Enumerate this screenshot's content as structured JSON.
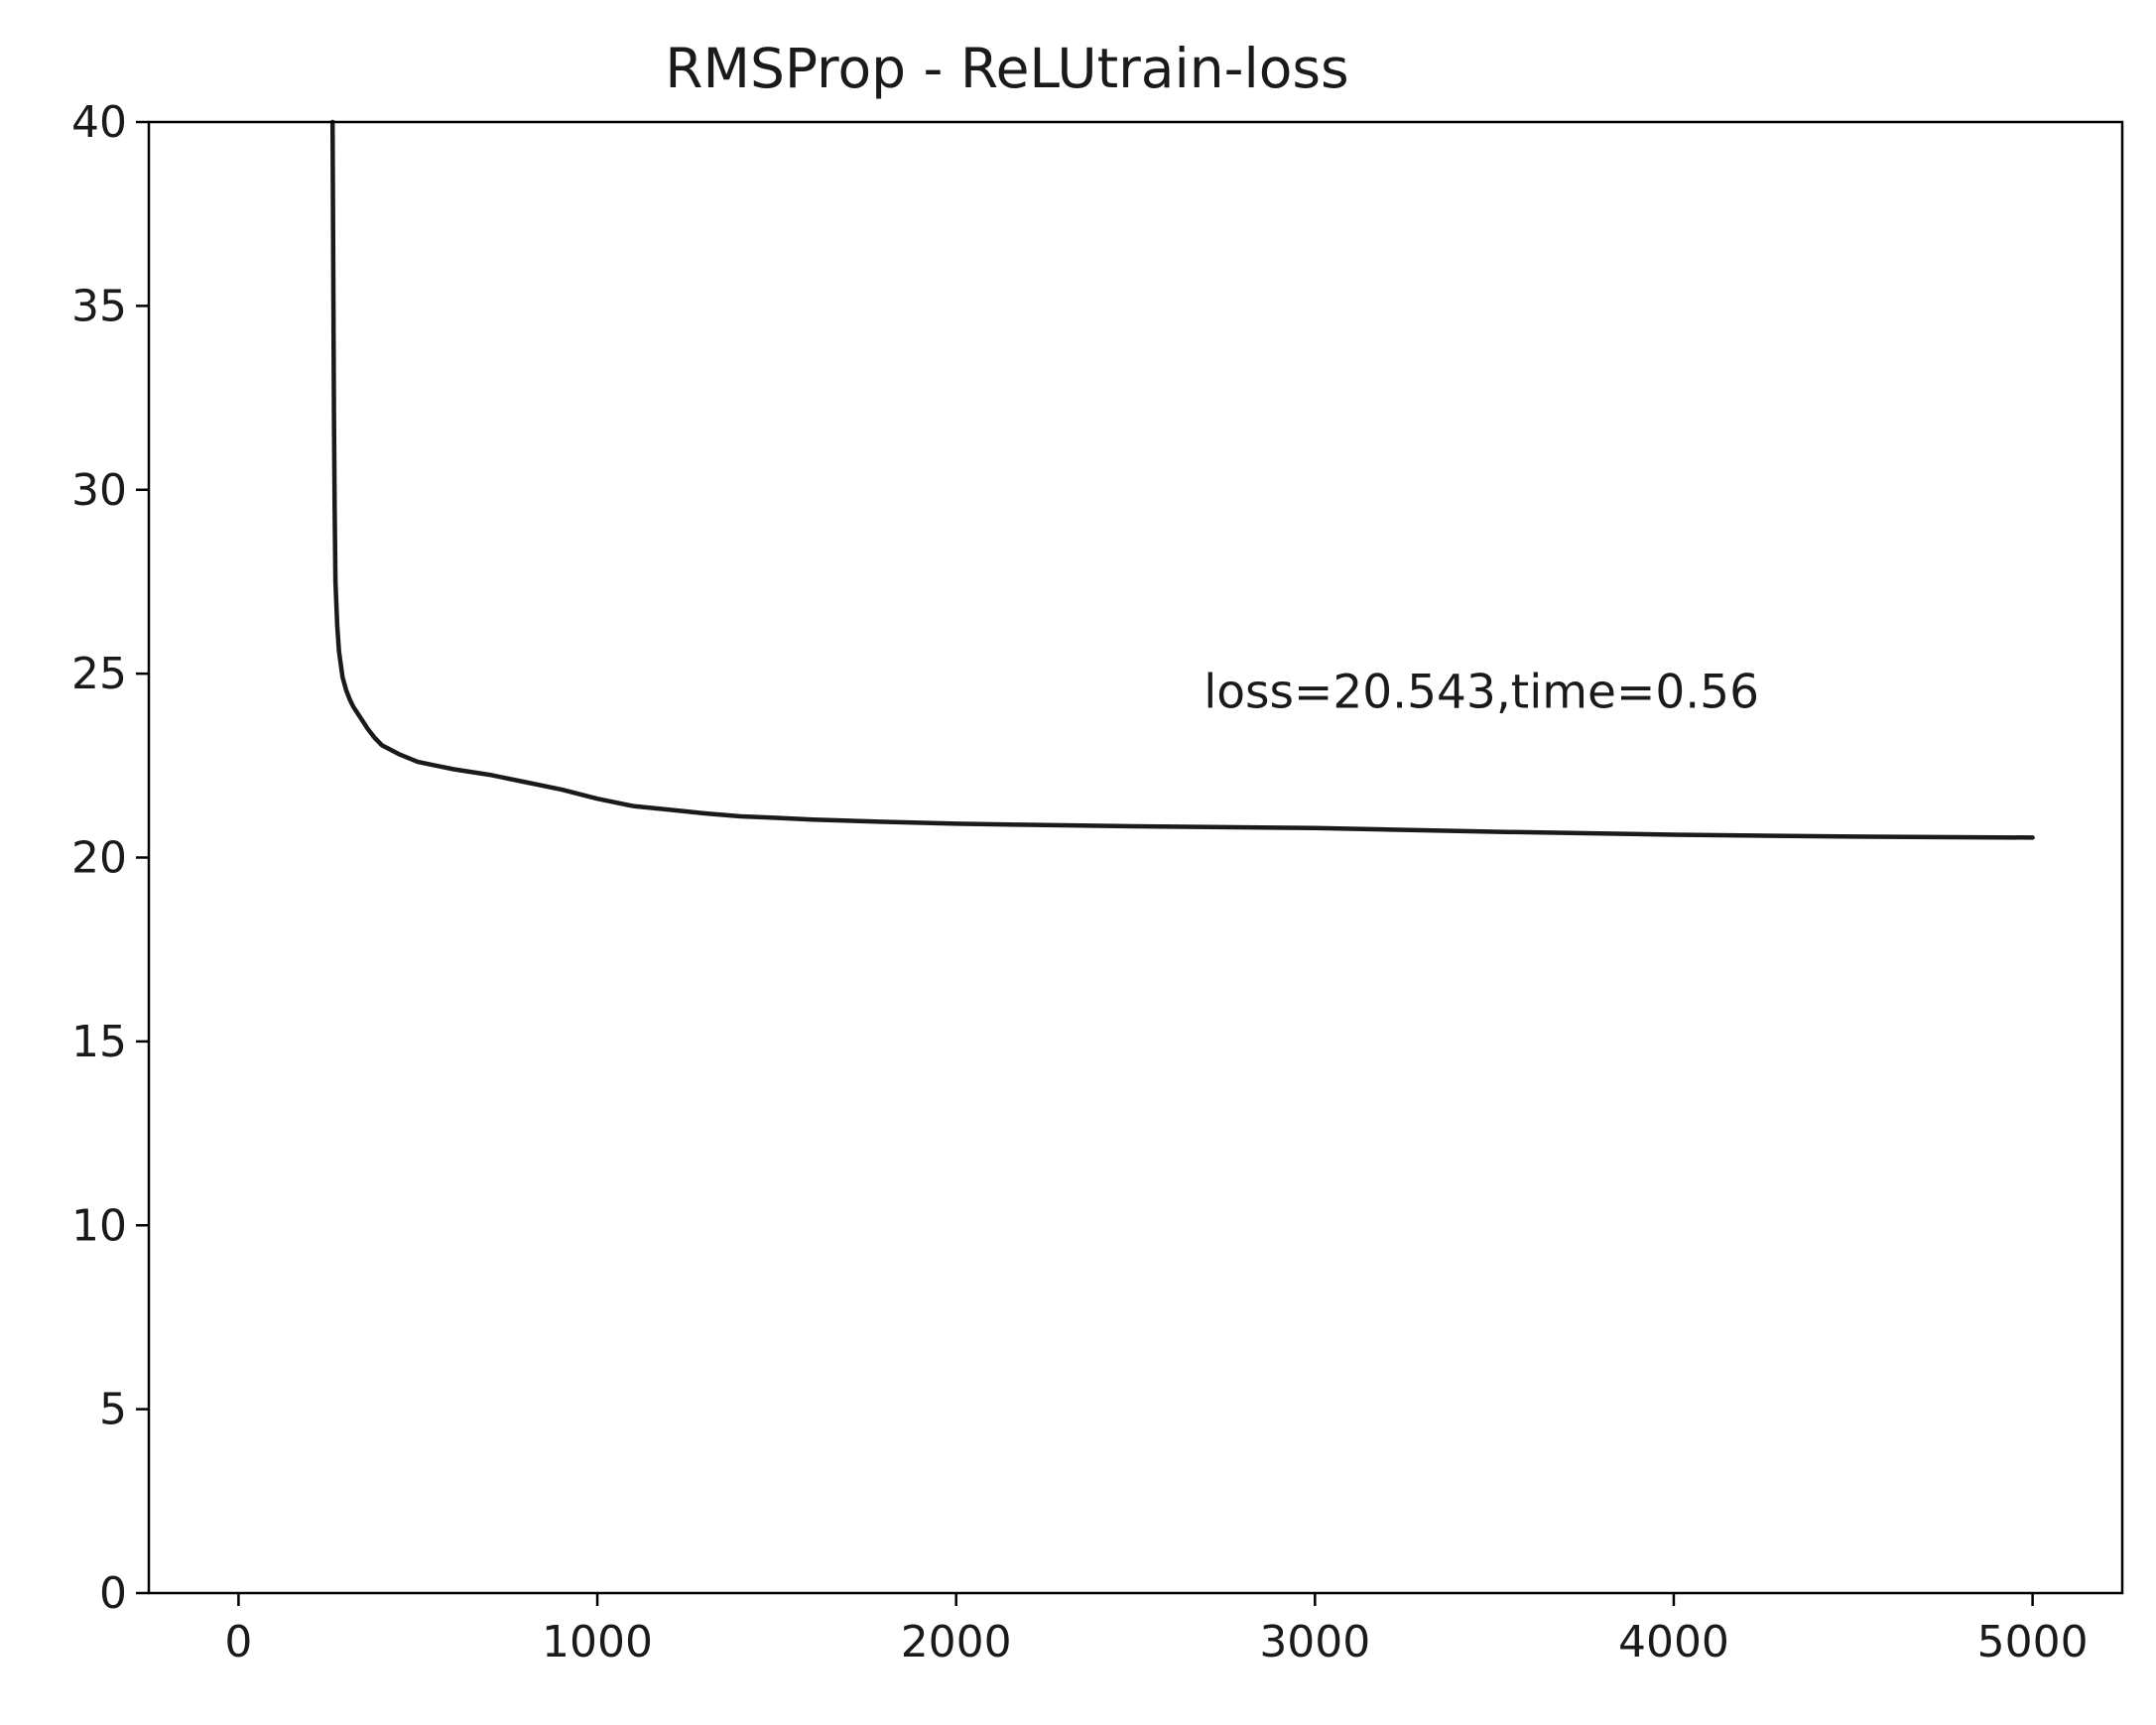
{
  "chart_data": {
    "type": "line",
    "title": "RMSProp - ReLUtrain-loss",
    "xlabel": "",
    "ylabel": "",
    "xlim": [
      -250,
      5250
    ],
    "ylim": [
      0,
      40
    ],
    "x_ticks": [
      0,
      1000,
      2000,
      3000,
      4000,
      5000
    ],
    "x_tick_labels": [
      "0",
      "1000",
      "2000",
      "3000",
      "4000",
      "5000"
    ],
    "y_ticks": [
      0,
      5,
      10,
      15,
      20,
      25,
      30,
      35,
      40
    ],
    "y_tick_labels": [
      "0",
      "5",
      "10",
      "15",
      "20",
      "25",
      "30",
      "35",
      "40"
    ],
    "grid": false,
    "line_color": "#1a1a1a",
    "annotation": {
      "text": "loss=20.543,time=0.56",
      "x": 2690,
      "y": 24.5
    },
    "series": [
      {
        "x": [
          262,
          264,
          266,
          268,
          270,
          275,
          280,
          290,
          300,
          310,
          320,
          340,
          360,
          380,
          400,
          450,
          500,
          550,
          600,
          700,
          800,
          900,
          1000,
          1100,
          1200,
          1300,
          1400,
          1500,
          1600,
          1700,
          1800,
          2000,
          2200,
          2500,
          3000,
          3500,
          4000,
          4500,
          5000
        ],
        "y": [
          40.0,
          36.0,
          32.0,
          29.5,
          27.5,
          26.3,
          25.6,
          24.9,
          24.55,
          24.3,
          24.1,
          23.8,
          23.5,
          23.25,
          23.05,
          22.8,
          22.6,
          22.5,
          22.4,
          22.25,
          22.05,
          21.85,
          21.6,
          21.4,
          21.3,
          21.2,
          21.12,
          21.08,
          21.03,
          21.0,
          20.97,
          20.92,
          20.89,
          20.85,
          20.8,
          20.7,
          20.62,
          20.57,
          20.543
        ]
      }
    ]
  }
}
